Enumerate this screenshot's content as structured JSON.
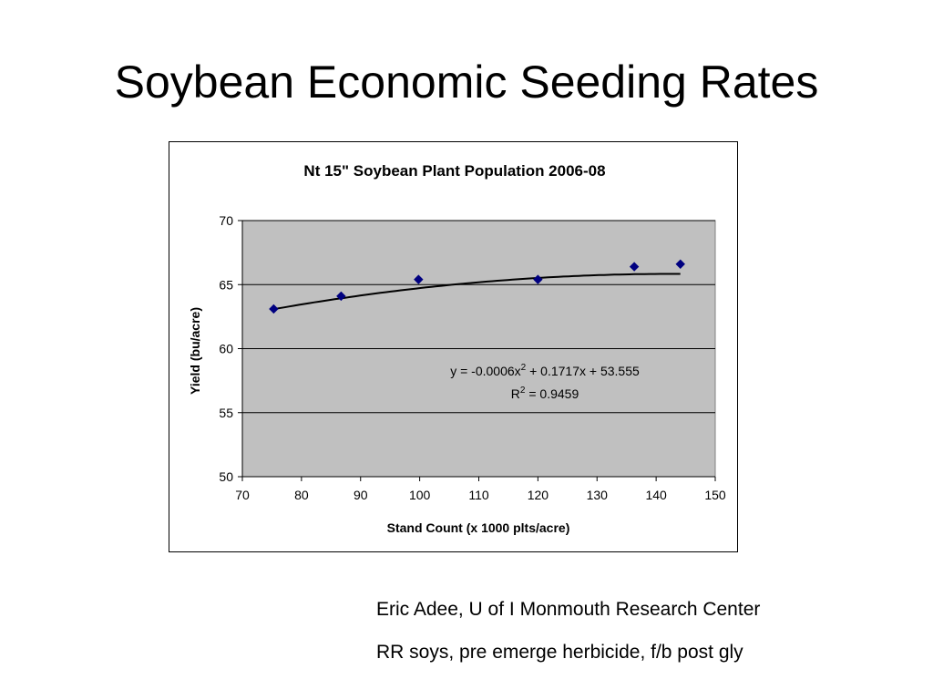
{
  "slide": {
    "title": "Soybean Economic Seeding Rates",
    "notes": [
      "Eric Adee, U of I Monmouth Research Center",
      "RR soys, pre emerge herbicide, f/b post gly"
    ]
  },
  "chart_data": {
    "type": "scatter",
    "title": "Nt 15\" Soybean Plant Population 2006-08",
    "xlabel": "Stand Count (x 1000 plts/acre)",
    "ylabel": "Yield (bu/acre)",
    "xlim": [
      70,
      150
    ],
    "ylim": [
      50,
      70
    ],
    "x_ticks": [
      70,
      80,
      90,
      100,
      110,
      120,
      130,
      140,
      150
    ],
    "y_ticks": [
      50,
      55,
      60,
      65,
      70
    ],
    "grid": "horizontal",
    "plot_background": "#c0c0c0",
    "series": [
      {
        "marker": "diamond",
        "color": "#000080",
        "x": [
          75.3,
          86.7,
          99.8,
          120.0,
          136.3,
          144.1
        ],
        "y": [
          63.1,
          64.1,
          65.4,
          65.4,
          66.4,
          66.6
        ]
      }
    ],
    "trendline": {
      "type": "polynomial",
      "coefficients": {
        "a": -0.0006,
        "b": 0.1717,
        "c": 53.555
      },
      "equation_main": "y = -0.0006x",
      "equation_sup": "2",
      "equation_rest": " + 0.1717x + 53.555",
      "r2_main": "R",
      "r2_sup": "2",
      "r2_rest": " = 0.9459",
      "color": "#000000"
    }
  }
}
